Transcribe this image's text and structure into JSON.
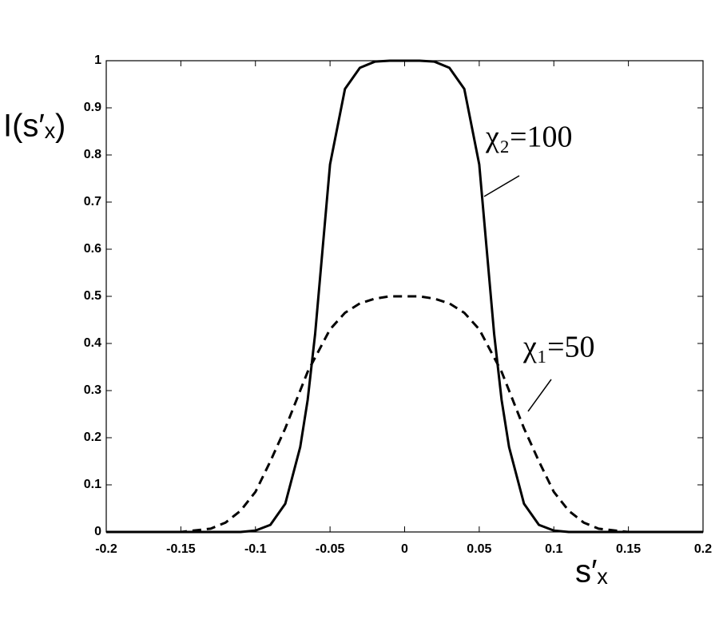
{
  "chart_data": {
    "type": "line",
    "ylabel": "I(s′ₓ)",
    "xlabel": "s′ₓ",
    "x": [
      -0.2,
      -0.15,
      -0.13,
      -0.12,
      -0.11,
      -0.1,
      -0.09,
      -0.08,
      -0.07,
      -0.065,
      -0.06,
      -0.055,
      -0.05,
      -0.04,
      -0.03,
      -0.02,
      -0.01,
      0,
      0.01,
      0.02,
      0.03,
      0.04,
      0.05,
      0.055,
      0.06,
      0.065,
      0.07,
      0.08,
      0.09,
      0.1,
      0.11,
      0.12,
      0.13,
      0.15,
      0.2
    ],
    "series": [
      {
        "name": "χ₂=100",
        "color": "#000000",
        "linestyle": "solid",
        "values": [
          0,
          0,
          0,
          0,
          0,
          0.003,
          0.015,
          0.06,
          0.18,
          0.28,
          0.42,
          0.6,
          0.78,
          0.94,
          0.985,
          0.998,
          1,
          1,
          1,
          0.998,
          0.985,
          0.94,
          0.78,
          0.6,
          0.42,
          0.28,
          0.18,
          0.06,
          0.015,
          0.003,
          0,
          0,
          0,
          0,
          0
        ]
      },
      {
        "name": "χ₁=50",
        "color": "#000000",
        "linestyle": "dashed",
        "values": [
          0,
          0,
          0.007,
          0.02,
          0.045,
          0.085,
          0.15,
          0.22,
          0.3,
          0.34,
          0.37,
          0.4,
          0.43,
          0.465,
          0.485,
          0.495,
          0.5,
          0.5,
          0.5,
          0.495,
          0.485,
          0.465,
          0.43,
          0.4,
          0.37,
          0.34,
          0.3,
          0.22,
          0.15,
          0.085,
          0.045,
          0.02,
          0.007,
          0,
          0
        ]
      }
    ],
    "xlim": [
      -0.2,
      0.2
    ],
    "xticks": [
      -0.2,
      -0.15,
      -0.1,
      -0.05,
      0,
      0.05,
      0.1,
      0.15,
      0.2
    ],
    "ylim": [
      0,
      1
    ],
    "yticks": [
      0,
      0.1,
      0.2,
      0.3,
      0.4,
      0.5,
      0.6,
      0.7,
      0.8,
      0.9,
      1
    ],
    "grid": false
  }
}
